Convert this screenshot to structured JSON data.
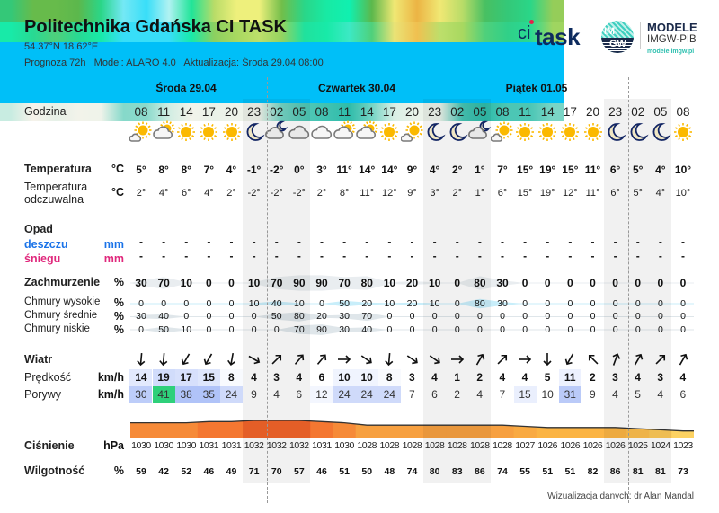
{
  "header": {
    "title": "Politechnika Gdańska CI TASK",
    "coords": "54.37°N  18.62°E",
    "forecast": "Prognoza 72h",
    "model_label": "Model:",
    "model": "ALARO 4.0",
    "update_label": "Aktualizacja:",
    "update": "Środa 29.04 08:00"
  },
  "logos": {
    "citask_ci": "ci",
    "citask_task": "task",
    "imgw_top": "IM",
    "imgw_bottom": "GW",
    "modele": "MODELE",
    "imgw_pib": "IMGW-PIB",
    "url": "modele.imgw.pl"
  },
  "days": [
    "Środa 29.04",
    "Czwartek 30.04",
    "Piątek 01.05"
  ],
  "labels": {
    "hour": "Godzina",
    "temp": "Temperatura",
    "temp_unit": "°C",
    "feels": "Temperatura odczuwalna",
    "feels_unit": "°C",
    "precip": "Opad",
    "rain": "deszczu",
    "rain_unit": "mm",
    "snow": "śniegu",
    "snow_unit": "mm",
    "cloud": "Zachmurzenie",
    "cloud_unit": "%",
    "high": "Chmury wysokie",
    "mid": "Chmury średnie",
    "low": "Chmury niskie",
    "pct": "%",
    "wind": "Wiatr",
    "speed": "Prędkość",
    "speed_unit": "km/h",
    "gust": "Porywy",
    "gust_unit": "km/h",
    "pressure": "Ciśnienie",
    "pressure_unit": "hPa",
    "humidity": "Wilgotność",
    "humidity_unit": "%"
  },
  "hours": [
    "08",
    "11",
    "14",
    "17",
    "20",
    "23",
    "02",
    "05",
    "08",
    "11",
    "14",
    "17",
    "20",
    "23",
    "02",
    "05",
    "08",
    "11",
    "14",
    "17",
    "20",
    "23",
    "02",
    "05",
    "08"
  ],
  "night_columns": [
    5,
    6,
    7,
    13,
    14,
    15,
    21,
    22,
    23
  ],
  "icons": [
    "sun-cloud",
    "cloud-sun",
    "sun",
    "sun",
    "sun",
    "moon",
    "cloud-moon",
    "cloud",
    "cloud",
    "cloud-sun",
    "cloud-sun",
    "sun",
    "sun-cloud",
    "moon",
    "moon",
    "cloud-moon",
    "sun-cloud",
    "sun",
    "sun",
    "sun",
    "sun",
    "moon",
    "moon",
    "moon",
    "sun"
  ],
  "temp": [
    "5°",
    "8°",
    "8°",
    "7°",
    "4°",
    "-1°",
    "-2°",
    "0°",
    "3°",
    "11°",
    "14°",
    "14°",
    "9°",
    "4°",
    "2°",
    "1°",
    "7°",
    "15°",
    "19°",
    "15°",
    "11°",
    "6°",
    "5°",
    "4°",
    "10°"
  ],
  "feels": [
    "2°",
    "4°",
    "6°",
    "4°",
    "2°",
    "-2°",
    "-2°",
    "-2°",
    "2°",
    "8°",
    "11°",
    "12°",
    "9°",
    "3°",
    "2°",
    "1°",
    "6°",
    "15°",
    "19°",
    "12°",
    "11°",
    "6°",
    "5°",
    "4°",
    "10°"
  ],
  "rain": [
    "-",
    "-",
    "-",
    "-",
    "-",
    "-",
    "-",
    "-",
    "-",
    "-",
    "-",
    "-",
    "-",
    "-",
    "-",
    "-",
    "-",
    "-",
    "-",
    "-",
    "-",
    "-",
    "-",
    "-",
    "-"
  ],
  "snow": [
    "-",
    "-",
    "-",
    "-",
    "-",
    "-",
    "-",
    "-",
    "-",
    "-",
    "-",
    "-",
    "-",
    "-",
    "-",
    "-",
    "-",
    "-",
    "-",
    "-",
    "-",
    "-",
    "-",
    "-",
    "-"
  ],
  "cloud": [
    "30",
    "70",
    "10",
    "0",
    "0",
    "10",
    "70",
    "90",
    "90",
    "70",
    "80",
    "10",
    "20",
    "10",
    "0",
    "80",
    "30",
    "0",
    "0",
    "0",
    "0",
    "0",
    "0",
    "0",
    "0"
  ],
  "cloud_high": [
    "0",
    "0",
    "0",
    "0",
    "0",
    "10",
    "40",
    "10",
    "0",
    "50",
    "20",
    "10",
    "20",
    "10",
    "0",
    "80",
    "30",
    "0",
    "0",
    "0",
    "0",
    "0",
    "0",
    "0",
    "0"
  ],
  "cloud_mid": [
    "30",
    "40",
    "0",
    "0",
    "0",
    "0",
    "50",
    "80",
    "20",
    "30",
    "70",
    "0",
    "0",
    "0",
    "0",
    "0",
    "0",
    "0",
    "0",
    "0",
    "0",
    "0",
    "0",
    "0",
    "0"
  ],
  "cloud_low": [
    "0",
    "50",
    "10",
    "0",
    "0",
    "0",
    "0",
    "70",
    "90",
    "30",
    "40",
    "0",
    "0",
    "0",
    "0",
    "0",
    "0",
    "0",
    "0",
    "0",
    "0",
    "0",
    "0",
    "0",
    "0"
  ],
  "wind_dir_deg": [
    185,
    185,
    210,
    210,
    190,
    120,
    45,
    40,
    40,
    90,
    125,
    185,
    125,
    125,
    90,
    30,
    45,
    90,
    180,
    210,
    315,
    20,
    30,
    45,
    30
  ],
  "wind_speed": [
    "14",
    "19",
    "17",
    "15",
    "8",
    "4",
    "3",
    "4",
    "6",
    "10",
    "10",
    "8",
    "3",
    "4",
    "1",
    "2",
    "4",
    "4",
    "5",
    "11",
    "2",
    "3",
    "4",
    "3",
    "4"
  ],
  "wind_gust": [
    "30",
    "41",
    "38",
    "35",
    "24",
    "9",
    "4",
    "6",
    "12",
    "24",
    "24",
    "24",
    "7",
    "6",
    "2",
    "4",
    "7",
    "15",
    "10",
    "31",
    "9",
    "4",
    "5",
    "4",
    "6"
  ],
  "pressure": [
    "1030",
    "1030",
    "1030",
    "1031",
    "1031",
    "1032",
    "1032",
    "1032",
    "1031",
    "1030",
    "1028",
    "1028",
    "1028",
    "1028",
    "1028",
    "1028",
    "1028",
    "1027",
    "1026",
    "1026",
    "1026",
    "1026",
    "1025",
    "1024",
    "1023"
  ],
  "humidity": [
    "59",
    "42",
    "52",
    "46",
    "49",
    "71",
    "70",
    "57",
    "46",
    "51",
    "50",
    "48",
    "74",
    "80",
    "83",
    "86",
    "74",
    "55",
    "51",
    "51",
    "82",
    "86",
    "81",
    "81",
    "73"
  ],
  "colors": {
    "cloud_bar": "#00bff8",
    "navy": "#0d2b5e",
    "rain": "#1a73e8",
    "snow": "#e0287c",
    "teal": "#2fc0b0"
  },
  "footer": "Wizualizacja danych: dr Alan Mandal"
}
